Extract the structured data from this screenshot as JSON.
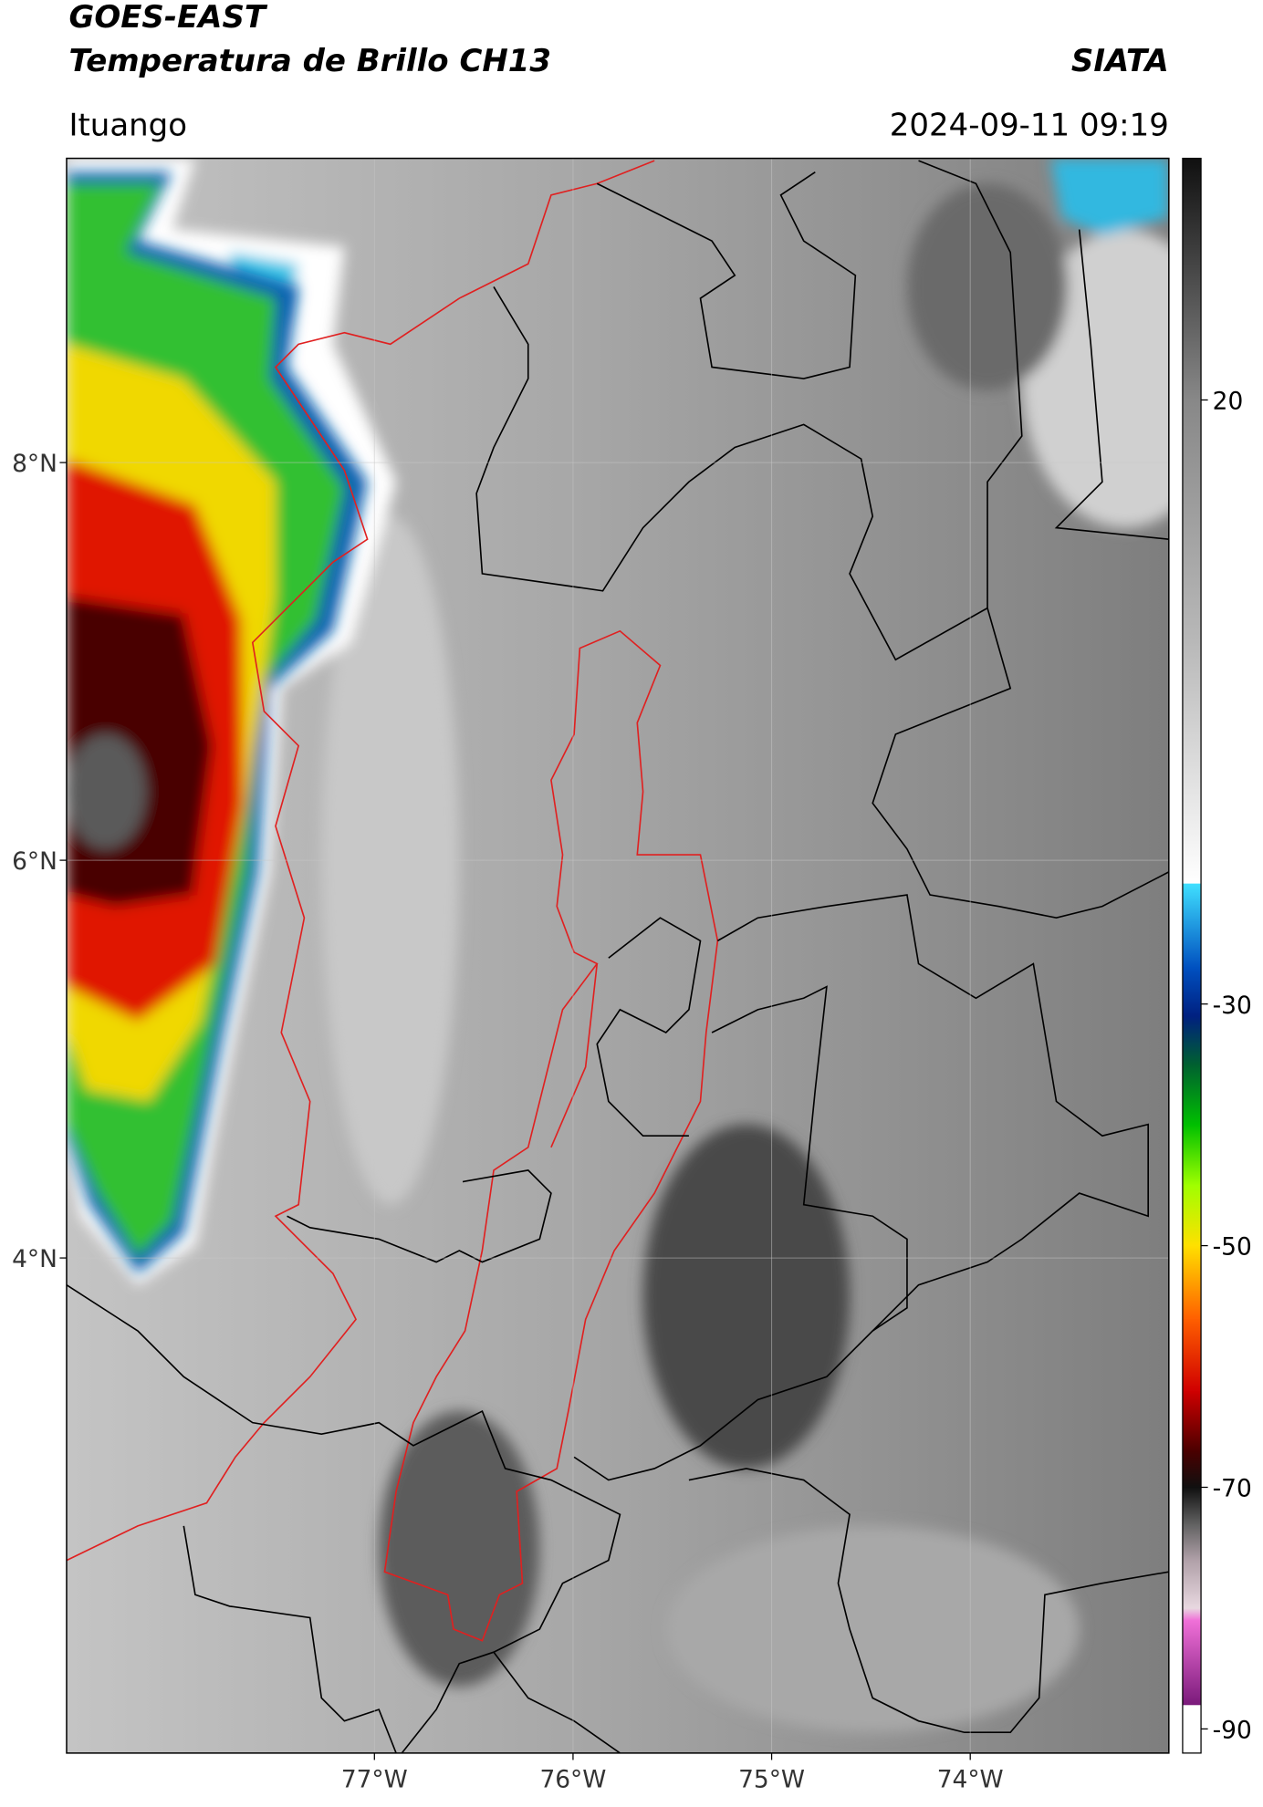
{
  "header": {
    "title": "GOES-EAST",
    "subtitle": "Temperatura de Brillo CH13",
    "source": "SIATA",
    "location": "Ituango",
    "timestamp": "2024-09-11 09:19"
  },
  "map": {
    "xlim": [
      -78.55,
      -73.0
    ],
    "ylim": [
      1.51,
      9.53
    ],
    "grid": true,
    "xticks": [
      {
        "value": -77,
        "label": "77°W"
      },
      {
        "value": -76,
        "label": "76°W"
      },
      {
        "value": -75,
        "label": "75°W"
      },
      {
        "value": -74,
        "label": "74°W"
      }
    ],
    "yticks": [
      {
        "value": 8,
        "label": "8°N"
      },
      {
        "value": 6,
        "label": "6°N"
      },
      {
        "value": 4,
        "label": "4°N"
      }
    ]
  },
  "colorbar": {
    "lim": [
      -92,
      40
    ],
    "ticks": [
      20,
      -30,
      -50,
      -70,
      -90
    ],
    "stops": [
      {
        "value": -92,
        "color": "#ffffff"
      },
      {
        "value": -88,
        "color": "#ffffff"
      },
      {
        "value": -88,
        "color": "#7a1a7a"
      },
      {
        "value": -81,
        "color": "#f070d8"
      },
      {
        "value": -80,
        "color": "#e8d8e0"
      },
      {
        "value": -76,
        "color": "#b0a0a8"
      },
      {
        "value": -73,
        "color": "#606060"
      },
      {
        "value": -70,
        "color": "#101010"
      },
      {
        "value": -67,
        "color": "#4a0000"
      },
      {
        "value": -62,
        "color": "#d00000"
      },
      {
        "value": -56,
        "color": "#ff6000"
      },
      {
        "value": -50,
        "color": "#ffe000"
      },
      {
        "value": -45,
        "color": "#a0ff00"
      },
      {
        "value": -40,
        "color": "#00c000"
      },
      {
        "value": -35,
        "color": "#006030"
      },
      {
        "value": -31,
        "color": "#002080"
      },
      {
        "value": -27,
        "color": "#0050c0"
      },
      {
        "value": -20,
        "color": "#40e0ff"
      },
      {
        "value": -20,
        "color": "#ffffff"
      },
      {
        "value": 0,
        "color": "#b8b8b8"
      },
      {
        "value": 20,
        "color": "#888888"
      },
      {
        "value": 40,
        "color": "#101010"
      }
    ]
  }
}
